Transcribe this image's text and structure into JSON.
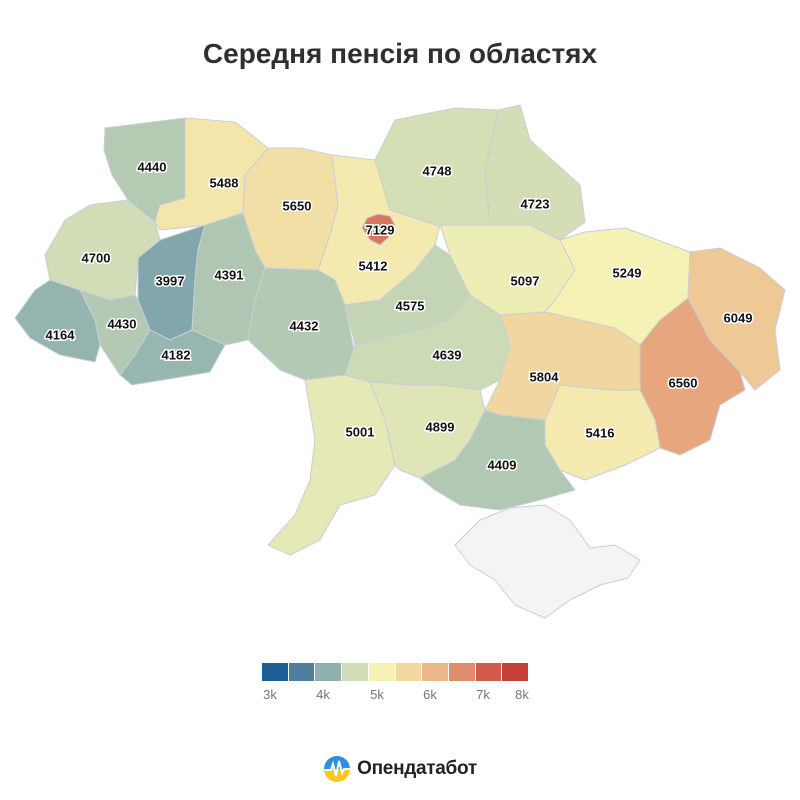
{
  "title": "Середня пенсія по областях",
  "chart_data": {
    "type": "choropleth",
    "value_range": [
      3000,
      8000
    ],
    "regions": [
      {
        "id": "volyn",
        "value": 4440
      },
      {
        "id": "rivne",
        "value": 5488
      },
      {
        "id": "zhytomyr",
        "value": 5650
      },
      {
        "id": "kyiv-oblast",
        "value": 5412
      },
      {
        "id": "kyiv-city",
        "value": 7129
      },
      {
        "id": "chernihiv",
        "value": 4748
      },
      {
        "id": "sumy",
        "value": 4723
      },
      {
        "id": "lviv",
        "value": 4700
      },
      {
        "id": "ternopil",
        "value": 3997
      },
      {
        "id": "khmelnytskyi",
        "value": 4391
      },
      {
        "id": "zakarpattia",
        "value": 4164
      },
      {
        "id": "ivano-frankivsk",
        "value": 4430
      },
      {
        "id": "chernivtsi",
        "value": 4182
      },
      {
        "id": "vinnytsia",
        "value": 4432
      },
      {
        "id": "cherkasy",
        "value": 4575
      },
      {
        "id": "poltava",
        "value": 5097
      },
      {
        "id": "kharkiv",
        "value": 5249
      },
      {
        "id": "luhansk",
        "value": 6049
      },
      {
        "id": "kirovohrad",
        "value": 4639
      },
      {
        "id": "dnipro",
        "value": 5804
      },
      {
        "id": "donetsk",
        "value": 6560
      },
      {
        "id": "zaporizhzhia",
        "value": 5416
      },
      {
        "id": "odesa",
        "value": 5001
      },
      {
        "id": "mykolaiv",
        "value": 4899
      },
      {
        "id": "kherson",
        "value": 4409
      },
      {
        "id": "crimea",
        "value": null
      }
    ]
  },
  "legend": {
    "colors": [
      "#1f5f96",
      "#4f7f9f",
      "#8eb0ae",
      "#cfdcb6",
      "#f6f2b6",
      "#f1d9a0",
      "#ebb88b",
      "#df8e6d",
      "#d05a4e",
      "#c63e38"
    ],
    "ticks": [
      "3k",
      "4k",
      "5k",
      "6k",
      "7k",
      "8k"
    ]
  },
  "brand": {
    "name": "Опендатабот",
    "icon": "opendatabot-logo-icon"
  }
}
